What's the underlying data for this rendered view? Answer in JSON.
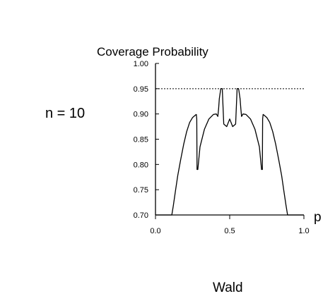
{
  "chart_data": {
    "type": "line",
    "title": "Coverage Probability",
    "xlabel": "p",
    "ylabel": "",
    "annotation": "n = 10",
    "caption": "Wald",
    "xlim": [
      0,
      1
    ],
    "ylim": [
      0.7,
      1.0
    ],
    "xticks": [
      "0.0",
      "0.5",
      "1.0"
    ],
    "yticks": [
      "0.70",
      "0.75",
      "0.80",
      "0.85",
      "0.90",
      "0.95",
      "1.00"
    ],
    "reference_line": {
      "y": 0.95,
      "style": "dotted"
    },
    "series": [
      {
        "x": [
          0.0,
          0.11,
          0.12,
          0.135,
          0.15,
          0.17,
          0.19,
          0.21,
          0.23,
          0.25,
          0.27,
          0.275,
          0.278,
          0.28,
          0.285,
          0.3,
          0.33,
          0.36,
          0.39,
          0.41,
          0.42,
          0.425,
          0.43,
          0.44,
          0.45,
          0.46,
          0.48,
          0.5,
          0.52,
          0.54,
          0.55,
          0.56,
          0.57,
          0.575,
          0.58,
          0.59,
          0.61,
          0.64,
          0.67,
          0.7,
          0.715,
          0.72,
          0.722,
          0.725,
          0.73,
          0.75,
          0.77,
          0.79,
          0.81,
          0.83,
          0.85,
          0.865,
          0.88,
          0.89,
          1.0
        ],
        "y": [
          0.7,
          0.7,
          0.718,
          0.748,
          0.778,
          0.81,
          0.84,
          0.865,
          0.883,
          0.893,
          0.898,
          0.899,
          0.89,
          0.79,
          0.79,
          0.835,
          0.87,
          0.89,
          0.899,
          0.9,
          0.895,
          0.91,
          0.93,
          0.95,
          0.95,
          0.88,
          0.875,
          0.89,
          0.875,
          0.88,
          0.95,
          0.95,
          0.93,
          0.91,
          0.895,
          0.9,
          0.899,
          0.89,
          0.87,
          0.835,
          0.79,
          0.79,
          0.89,
          0.899,
          0.898,
          0.893,
          0.883,
          0.865,
          0.84,
          0.81,
          0.778,
          0.748,
          0.718,
          0.7,
          0.7
        ]
      }
    ]
  }
}
